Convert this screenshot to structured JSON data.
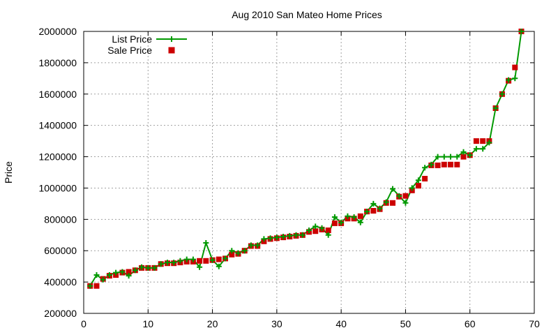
{
  "chart_data": {
    "type": "line",
    "title": "Aug 2010 San Mateo Home Prices",
    "xlabel": "",
    "ylabel": "Price",
    "xlim": [
      0,
      70
    ],
    "ylim": [
      200000,
      2000000
    ],
    "xticks": [
      0,
      10,
      20,
      30,
      40,
      50,
      60,
      70
    ],
    "yticks": [
      200000,
      400000,
      600000,
      800000,
      1000000,
      1200000,
      1400000,
      1600000,
      1800000,
      2000000
    ],
    "grid": true,
    "legend_position": "top-left",
    "series": [
      {
        "name": "List Price",
        "style": "line-with-plus-markers",
        "color": "#009900",
        "x": [
          1,
          2,
          3,
          4,
          5,
          6,
          7,
          8,
          9,
          10,
          11,
          12,
          13,
          14,
          15,
          16,
          17,
          18,
          19,
          20,
          21,
          22,
          23,
          24,
          25,
          26,
          27,
          28,
          29,
          30,
          31,
          32,
          33,
          34,
          35,
          36,
          37,
          38,
          39,
          40,
          41,
          42,
          43,
          44,
          45,
          46,
          47,
          48,
          49,
          50,
          51,
          52,
          53,
          54,
          55,
          56,
          57,
          58,
          59,
          60,
          61,
          62,
          63,
          64,
          65,
          66,
          67,
          68
        ],
        "values": [
          375000,
          445000,
          415000,
          445000,
          460000,
          465000,
          440000,
          475000,
          495000,
          490000,
          490000,
          515000,
          525000,
          525000,
          535000,
          545000,
          545000,
          495000,
          650000,
          540000,
          500000,
          550000,
          600000,
          585000,
          600000,
          635000,
          635000,
          675000,
          680000,
          685000,
          690000,
          695000,
          700000,
          700000,
          730000,
          755000,
          745000,
          700000,
          815000,
          780000,
          820000,
          815000,
          780000,
          850000,
          900000,
          870000,
          910000,
          995000,
          950000,
          905000,
          1000000,
          1050000,
          1130000,
          1150000,
          1200000,
          1200000,
          1200000,
          1200000,
          1230000,
          1210000,
          1250000,
          1250000,
          1290000,
          1510000,
          1600000,
          1690000,
          1700000,
          2000000
        ]
      },
      {
        "name": "Sale Price",
        "style": "square-markers",
        "color": "#cc0000",
        "x": [
          1,
          2,
          3,
          4,
          5,
          6,
          7,
          8,
          9,
          10,
          11,
          12,
          13,
          14,
          15,
          16,
          17,
          18,
          19,
          20,
          21,
          22,
          23,
          24,
          25,
          26,
          27,
          28,
          29,
          30,
          31,
          32,
          33,
          34,
          35,
          36,
          37,
          38,
          39,
          40,
          41,
          42,
          43,
          44,
          45,
          46,
          47,
          48,
          49,
          50,
          51,
          52,
          53,
          54,
          55,
          56,
          57,
          58,
          59,
          60,
          61,
          62,
          63,
          64,
          65,
          66,
          67,
          68
        ],
        "values": [
          375000,
          375000,
          420000,
          440000,
          445000,
          460000,
          465000,
          475000,
          490000,
          490000,
          490000,
          515000,
          520000,
          520000,
          525000,
          530000,
          530000,
          535000,
          535000,
          540000,
          545000,
          550000,
          575000,
          580000,
          600000,
          630000,
          630000,
          660000,
          675000,
          680000,
          685000,
          690000,
          695000,
          700000,
          720000,
          725000,
          735000,
          730000,
          775000,
          775000,
          805000,
          805000,
          820000,
          850000,
          855000,
          865000,
          905000,
          905000,
          945000,
          950000,
          985000,
          1015000,
          1060000,
          1145000,
          1145000,
          1150000,
          1150000,
          1150000,
          1200000,
          1210000,
          1300000,
          1300000,
          1300000,
          1510000,
          1600000,
          1685000,
          1770000,
          2000000
        ]
      }
    ]
  }
}
